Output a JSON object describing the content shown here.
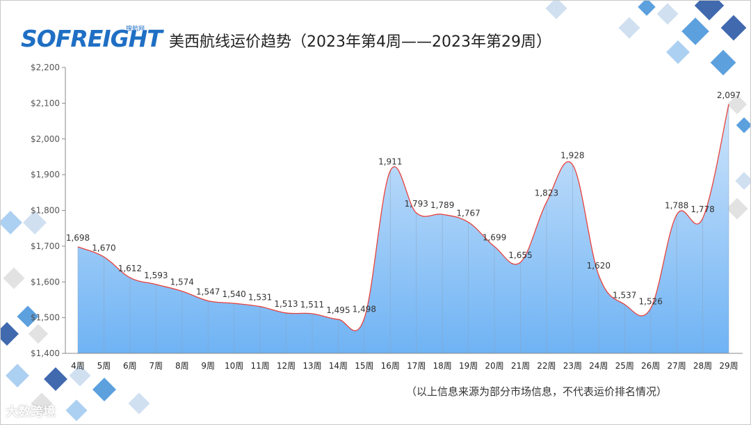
{
  "header": {
    "logo_text": "SOFREIGHT",
    "logo_sub": "搜航网",
    "title": "美西航线运价趋势（2023年第4周——2023年第29周）"
  },
  "footer": {
    "note": "（以上信息来源为部分市场信息，不代表运价排名情况）",
    "watermark": "大数跨境"
  },
  "colors": {
    "line": "#e8413c",
    "area_top": "#cfe5fb",
    "area_bottom": "#6fb3f4",
    "logo": "#1f6fc4",
    "deco_tiles": [
      "#1f4fa0",
      "#3f8fd8",
      "#9ec8ee",
      "#c8dbee",
      "#dddddd"
    ]
  },
  "chart_data": {
    "type": "area",
    "title": "美西航线运价趋势（2023年第4周——2023年第29周）",
    "categories": [
      "4周",
      "5周",
      "6周",
      "7周",
      "8周",
      "9周",
      "10周",
      "11周",
      "12周",
      "13周",
      "14周",
      "15周",
      "16周",
      "17周",
      "18周",
      "19周",
      "20周",
      "21周",
      "22周",
      "23周",
      "24周",
      "25周",
      "26周",
      "27周",
      "28周",
      "29周"
    ],
    "values": [
      1698,
      1670,
      1612,
      1593,
      1574,
      1547,
      1540,
      1531,
      1513,
      1511,
      1495,
      1498,
      1911,
      1793,
      1789,
      1767,
      1699,
      1655,
      1823,
      1928,
      1620,
      1537,
      1526,
      1788,
      1778,
      2097
    ],
    "value_labels": [
      "1,698",
      "1,670",
      "1,612",
      "1,593",
      "1,574",
      "1,547",
      "1,540",
      "1,531",
      "1,513",
      "1,511",
      "1,495",
      "1,498",
      "1,911",
      "1,793",
      "1,789",
      "1,767",
      "1,699",
      "1,655",
      "1,823",
      "1,928",
      "1,620",
      "1,537",
      "1,526",
      "1,788",
      "1,778",
      "2,097"
    ],
    "y_ticks": [
      1400,
      1500,
      1600,
      1700,
      1800,
      1900,
      2000,
      2100,
      2200
    ],
    "y_tick_labels": [
      "$1,400",
      "$1,500",
      "$1,600",
      "$1,700",
      "$1,800",
      "$1,900",
      "$2,000",
      "$2,100",
      "$2,200"
    ],
    "ylim": [
      1400,
      2200
    ],
    "grid": false,
    "legend": "none"
  }
}
